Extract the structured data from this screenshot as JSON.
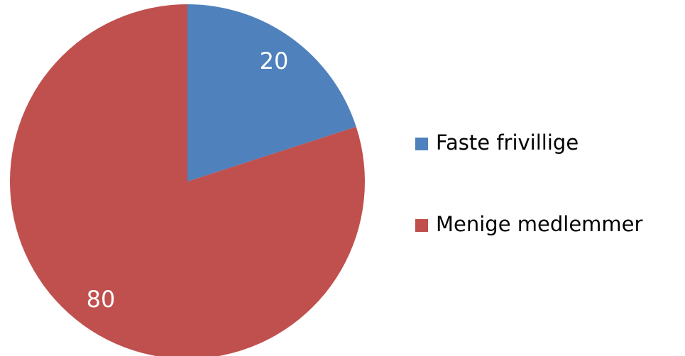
{
  "chart_data": {
    "type": "pie",
    "categories": [
      "Faste frivillige",
      "Menige medlemmer"
    ],
    "values": [
      20,
      80
    ],
    "colors": [
      "#4f81bd",
      "#c0504d"
    ],
    "legend": "right"
  }
}
